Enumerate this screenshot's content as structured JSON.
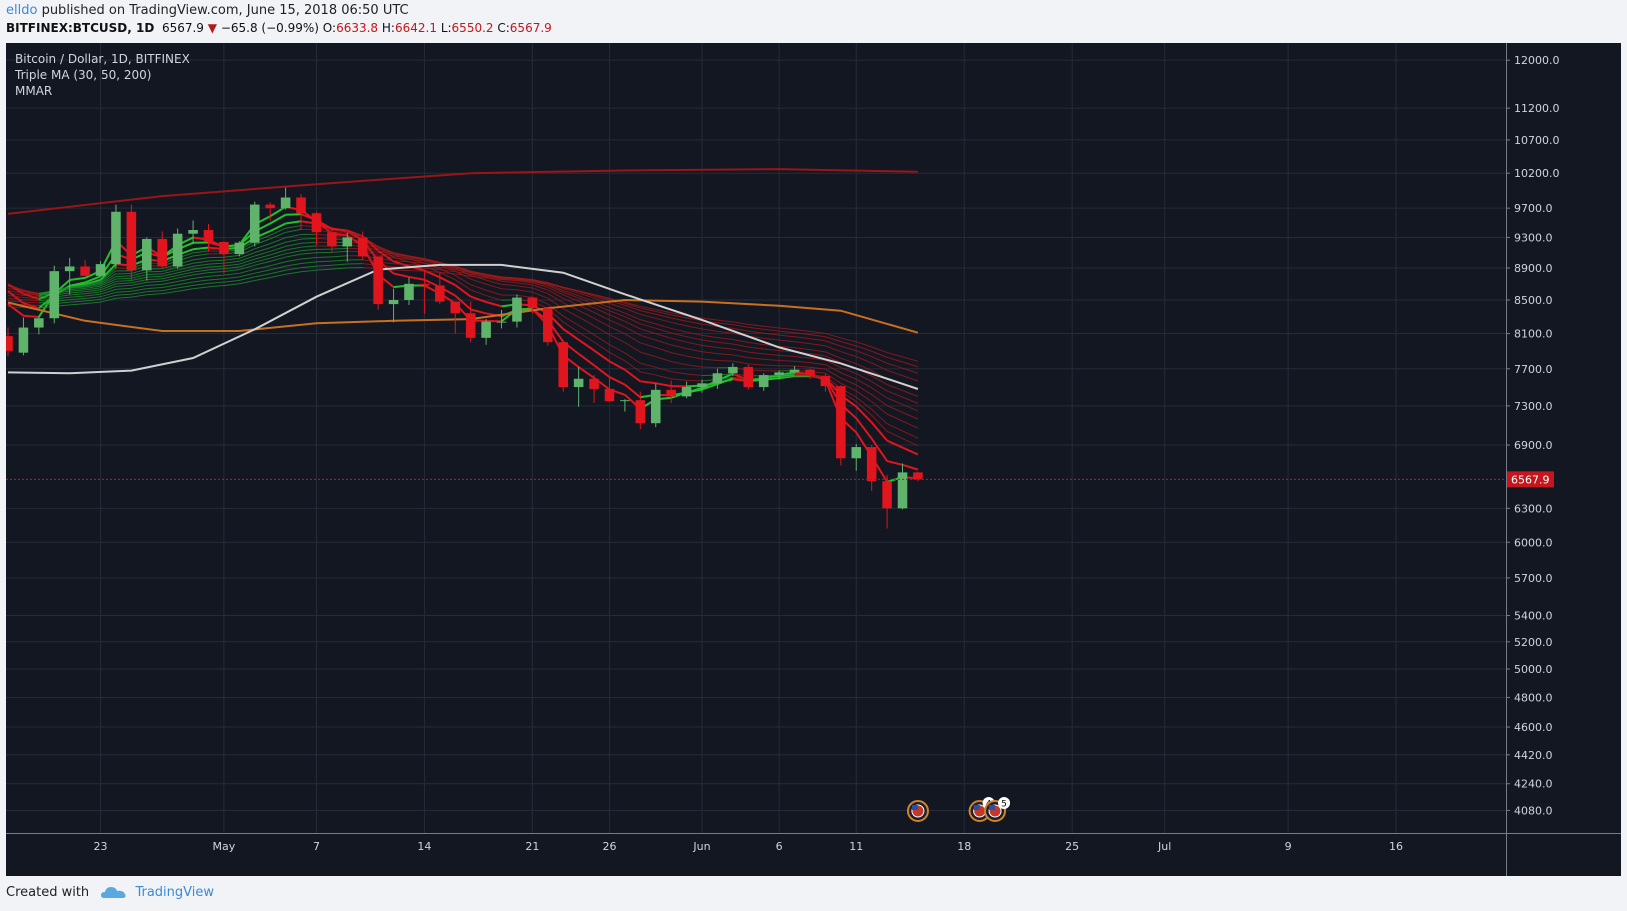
{
  "header": {
    "author": "elldo",
    "published_text": " published on TradingView.com, June 15, 2018 06:50 UTC",
    "symbol": "BITFINEX:BTCUSD, 1D",
    "last": "6567.9",
    "arrow": "▼",
    "change": "−65.8 (−0.99%)",
    "o_label": "O:",
    "o_value": "6633.8",
    "h_label": "H:",
    "h_value": "6642.1",
    "l_label": "L:",
    "l_value": "6550.2",
    "c_label": "C:",
    "c_value": "6567.9"
  },
  "legend": {
    "line1": "Bitcoin / Dollar, 1D, BITFINEX",
    "line2": "Triple MA (30, 50, 200)",
    "line3": "MMAR"
  },
  "footer": {
    "created_with": "Created with",
    "brand": "TradingView"
  },
  "colors": {
    "background": "#131722",
    "grid": "#262b3a",
    "up": "#5fb36a",
    "down": "#e0151d",
    "ma200": "#9a1515",
    "ma50": "#c87020",
    "ma30": "#d0d0d0",
    "last_price_tag": "#c4161c"
  },
  "chart_data": {
    "type": "candlestick",
    "symbol": "BITFINEX:BTCUSD",
    "interval": "1D",
    "scale": "log",
    "ylim": [
      3950,
      12300
    ],
    "y_ticks": [
      4080,
      4240,
      4420,
      4600,
      4800,
      5000,
      5200,
      5400,
      5700,
      6000,
      6300,
      6900,
      7300,
      7700,
      8100,
      8500,
      8900,
      9300,
      9700,
      10200,
      10700,
      11200,
      12000
    ],
    "x_ticks": [
      {
        "date": "2018-04-23",
        "label": "23"
      },
      {
        "date": "2018-05-01",
        "label": "May"
      },
      {
        "date": "2018-05-07",
        "label": "7"
      },
      {
        "date": "2018-05-14",
        "label": "14"
      },
      {
        "date": "2018-05-21",
        "label": "21"
      },
      {
        "date": "2018-05-26",
        "label": "26"
      },
      {
        "date": "2018-06-01",
        "label": "Jun"
      },
      {
        "date": "2018-06-06",
        "label": "6"
      },
      {
        "date": "2018-06-11",
        "label": "11"
      },
      {
        "date": "2018-06-18",
        "label": "18"
      },
      {
        "date": "2018-06-25",
        "label": "25"
      },
      {
        "date": "2018-07-01",
        "label": "Jul"
      },
      {
        "date": "2018-07-09",
        "label": "9"
      },
      {
        "date": "2018-07-16",
        "label": "16"
      }
    ],
    "xlim": [
      "2018-04-17",
      "2018-07-23"
    ],
    "last_price": 6567.9,
    "candles": [
      {
        "date": "2018-04-17",
        "o": 8070,
        "h": 8170,
        "l": 7840,
        "c": 7900
      },
      {
        "date": "2018-04-18",
        "o": 7880,
        "h": 8290,
        "l": 7850,
        "c": 8170
      },
      {
        "date": "2018-04-19",
        "o": 8170,
        "h": 8300,
        "l": 8090,
        "c": 8280
      },
      {
        "date": "2018-04-20",
        "o": 8280,
        "h": 8930,
        "l": 8220,
        "c": 8860
      },
      {
        "date": "2018-04-21",
        "o": 8860,
        "h": 9030,
        "l": 8570,
        "c": 8920
      },
      {
        "date": "2018-04-22",
        "o": 8920,
        "h": 9000,
        "l": 8820,
        "c": 8800
      },
      {
        "date": "2018-04-23",
        "o": 8800,
        "h": 8990,
        "l": 8790,
        "c": 8950
      },
      {
        "date": "2018-04-24",
        "o": 8950,
        "h": 9750,
        "l": 8900,
        "c": 9650
      },
      {
        "date": "2018-04-25",
        "o": 9650,
        "h": 9750,
        "l": 8750,
        "c": 8870
      },
      {
        "date": "2018-04-26",
        "o": 8870,
        "h": 9300,
        "l": 8740,
        "c": 9280
      },
      {
        "date": "2018-04-27",
        "o": 9280,
        "h": 9380,
        "l": 8900,
        "c": 8920
      },
      {
        "date": "2018-04-28",
        "o": 8920,
        "h": 9420,
        "l": 8890,
        "c": 9350
      },
      {
        "date": "2018-04-29",
        "o": 9350,
        "h": 9530,
        "l": 9210,
        "c": 9400
      },
      {
        "date": "2018-04-30",
        "o": 9400,
        "h": 9480,
        "l": 9110,
        "c": 9240
      },
      {
        "date": "2018-05-01",
        "o": 9240,
        "h": 9250,
        "l": 8830,
        "c": 9080
      },
      {
        "date": "2018-05-02",
        "o": 9080,
        "h": 9250,
        "l": 9050,
        "c": 9230
      },
      {
        "date": "2018-05-03",
        "o": 9230,
        "h": 9790,
        "l": 9180,
        "c": 9750
      },
      {
        "date": "2018-05-04",
        "o": 9750,
        "h": 9780,
        "l": 9530,
        "c": 9700
      },
      {
        "date": "2018-05-05",
        "o": 9700,
        "h": 9990,
        "l": 9680,
        "c": 9850
      },
      {
        "date": "2018-05-06",
        "o": 9850,
        "h": 9900,
        "l": 9400,
        "c": 9630
      },
      {
        "date": "2018-05-07",
        "o": 9630,
        "h": 9650,
        "l": 9200,
        "c": 9370
      },
      {
        "date": "2018-05-08",
        "o": 9370,
        "h": 9440,
        "l": 9100,
        "c": 9180
      },
      {
        "date": "2018-05-09",
        "o": 9180,
        "h": 9360,
        "l": 8980,
        "c": 9300
      },
      {
        "date": "2018-05-10",
        "o": 9300,
        "h": 9380,
        "l": 9000,
        "c": 9050
      },
      {
        "date": "2018-05-11",
        "o": 9050,
        "h": 9050,
        "l": 8380,
        "c": 8450
      },
      {
        "date": "2018-05-12",
        "o": 8450,
        "h": 8640,
        "l": 8230,
        "c": 8500
      },
      {
        "date": "2018-05-13",
        "o": 8500,
        "h": 8780,
        "l": 8440,
        "c": 8700
      },
      {
        "date": "2018-05-14",
        "o": 8700,
        "h": 8870,
        "l": 8330,
        "c": 8680
      },
      {
        "date": "2018-05-15",
        "o": 8680,
        "h": 8840,
        "l": 8450,
        "c": 8480
      },
      {
        "date": "2018-05-16",
        "o": 8480,
        "h": 8480,
        "l": 8100,
        "c": 8340
      },
      {
        "date": "2018-05-17",
        "o": 8340,
        "h": 8480,
        "l": 8000,
        "c": 8050
      },
      {
        "date": "2018-05-18",
        "o": 8050,
        "h": 8270,
        "l": 7970,
        "c": 8240
      },
      {
        "date": "2018-05-19",
        "o": 8240,
        "h": 8380,
        "l": 8160,
        "c": 8240
      },
      {
        "date": "2018-05-20",
        "o": 8240,
        "h": 8570,
        "l": 8170,
        "c": 8530
      },
      {
        "date": "2018-05-21",
        "o": 8530,
        "h": 8540,
        "l": 8340,
        "c": 8400
      },
      {
        "date": "2018-05-22",
        "o": 8400,
        "h": 8400,
        "l": 7960,
        "c": 8000
      },
      {
        "date": "2018-05-23",
        "o": 8000,
        "h": 8000,
        "l": 7450,
        "c": 7500
      },
      {
        "date": "2018-05-24",
        "o": 7500,
        "h": 7720,
        "l": 7290,
        "c": 7590
      },
      {
        "date": "2018-05-25",
        "o": 7590,
        "h": 7630,
        "l": 7330,
        "c": 7480
      },
      {
        "date": "2018-05-26",
        "o": 7480,
        "h": 7620,
        "l": 7350,
        "c": 7350
      },
      {
        "date": "2018-05-27",
        "o": 7350,
        "h": 7370,
        "l": 7240,
        "c": 7360
      },
      {
        "date": "2018-05-28",
        "o": 7360,
        "h": 7450,
        "l": 7060,
        "c": 7120
      },
      {
        "date": "2018-05-29",
        "o": 7120,
        "h": 7540,
        "l": 7080,
        "c": 7470
      },
      {
        "date": "2018-05-30",
        "o": 7470,
        "h": 7570,
        "l": 7330,
        "c": 7400
      },
      {
        "date": "2018-05-31",
        "o": 7400,
        "h": 7560,
        "l": 7380,
        "c": 7500
      },
      {
        "date": "2018-06-01",
        "o": 7500,
        "h": 7580,
        "l": 7440,
        "c": 7540
      },
      {
        "date": "2018-06-02",
        "o": 7540,
        "h": 7700,
        "l": 7480,
        "c": 7650
      },
      {
        "date": "2018-06-03",
        "o": 7650,
        "h": 7760,
        "l": 7620,
        "c": 7720
      },
      {
        "date": "2018-06-04",
        "o": 7720,
        "h": 7750,
        "l": 7470,
        "c": 7500
      },
      {
        "date": "2018-06-05",
        "o": 7500,
        "h": 7650,
        "l": 7460,
        "c": 7630
      },
      {
        "date": "2018-06-06",
        "o": 7630,
        "h": 7680,
        "l": 7580,
        "c": 7660
      },
      {
        "date": "2018-06-07",
        "o": 7660,
        "h": 7730,
        "l": 7650,
        "c": 7690
      },
      {
        "date": "2018-06-08",
        "o": 7690,
        "h": 7700,
        "l": 7590,
        "c": 7620
      },
      {
        "date": "2018-06-09",
        "o": 7620,
        "h": 7640,
        "l": 7450,
        "c": 7510
      },
      {
        "date": "2018-06-10",
        "o": 7510,
        "h": 7520,
        "l": 6700,
        "c": 6770
      },
      {
        "date": "2018-06-11",
        "o": 6770,
        "h": 6910,
        "l": 6650,
        "c": 6880
      },
      {
        "date": "2018-06-12",
        "o": 6880,
        "h": 6900,
        "l": 6460,
        "c": 6550
      },
      {
        "date": "2018-06-13",
        "o": 6550,
        "h": 6610,
        "l": 6120,
        "c": 6300
      },
      {
        "date": "2018-06-14",
        "o": 6300,
        "h": 6720,
        "l": 6290,
        "c": 6634
      },
      {
        "date": "2018-06-15",
        "o": 6633.8,
        "h": 6642.1,
        "l": 6550.2,
        "c": 6567.9
      }
    ],
    "series": [
      {
        "name": "Triple MA 200",
        "color": "#9a1515",
        "x": [
          "2018-04-17",
          "2018-04-27",
          "2018-05-07",
          "2018-05-17",
          "2018-05-27",
          "2018-06-06",
          "2018-06-15"
        ],
        "values": [
          9620,
          9870,
          10040,
          10200,
          10240,
          10260,
          10220
        ]
      },
      {
        "name": "Triple MA 50",
        "color": "#c87020",
        "x": [
          "2018-04-17",
          "2018-04-22",
          "2018-04-27",
          "2018-05-02",
          "2018-05-07",
          "2018-05-12",
          "2018-05-17",
          "2018-05-22",
          "2018-05-27",
          "2018-06-01",
          "2018-06-06",
          "2018-06-10",
          "2018-06-15"
        ],
        "values": [
          8470,
          8250,
          8130,
          8130,
          8220,
          8250,
          8270,
          8400,
          8500,
          8480,
          8430,
          8370,
          8110
        ]
      },
      {
        "name": "Triple MA 30",
        "color": "#d0d0d0",
        "x": [
          "2018-04-17",
          "2018-04-21",
          "2018-04-25",
          "2018-04-29",
          "2018-05-03",
          "2018-05-07",
          "2018-05-11",
          "2018-05-15",
          "2018-05-19",
          "2018-05-23",
          "2018-05-27",
          "2018-06-01",
          "2018-06-06",
          "2018-06-10",
          "2018-06-15"
        ],
        "values": [
          7660,
          7650,
          7680,
          7820,
          8150,
          8540,
          8880,
          8940,
          8940,
          8840,
          8570,
          8260,
          7940,
          7760,
          7480
        ]
      }
    ]
  },
  "event_markers": [
    {
      "date": "2018-06-15",
      "label": ""
    },
    {
      "date": "2018-06-19",
      "label": "4"
    },
    {
      "date": "2018-06-20",
      "label": "5"
    }
  ]
}
